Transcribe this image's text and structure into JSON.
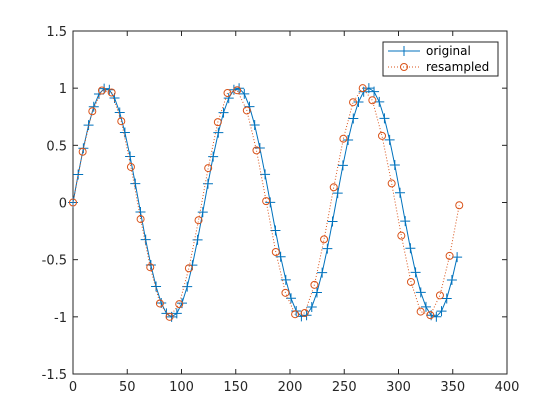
{
  "chart_data": {
    "type": "line",
    "title": "",
    "xlabel": "",
    "ylabel": "",
    "xlim": [
      0,
      400
    ],
    "ylim": [
      -1.5,
      1.5
    ],
    "xticks": [
      0,
      50,
      100,
      150,
      200,
      250,
      300,
      350,
      400
    ],
    "yticks": [
      -1.5,
      -1,
      -0.5,
      0,
      0.5,
      1,
      1.5
    ],
    "grid": false,
    "legend_position": "top-right",
    "series": [
      {
        "name": "original",
        "style": "solid line with plus markers",
        "color": "#0072BD",
        "x": [
          0,
          4.78,
          9.57,
          14.35,
          19.14,
          23.92,
          28.7,
          33.49,
          38.27,
          43.06,
          47.84,
          52.62,
          57.41,
          62.19,
          66.98,
          71.76,
          76.54,
          81.33,
          86.11,
          90.9,
          95.68,
          100.46,
          105.25,
          110.03,
          114.82,
          119.6,
          124.38,
          129.17,
          133.95,
          138.74,
          143.52,
          148.3,
          153.09,
          157.87,
          162.66,
          167.44,
          172.22,
          177.01,
          181.79,
          186.58,
          191.36,
          196.14,
          200.93,
          205.71,
          210.5,
          215.28,
          220.06,
          224.85,
          229.63,
          234.42,
          239.2,
          243.98,
          248.77,
          253.55,
          258.34,
          263.12,
          267.9,
          272.69,
          277.47,
          282.26,
          287.04,
          291.82,
          296.61,
          301.39,
          306.18,
          310.96,
          315.74,
          320.53,
          325.31,
          330.1,
          334.88,
          339.66,
          344.45,
          349.23,
          354.02
        ],
        "y": [
          0,
          0.245,
          0.475,
          0.677,
          0.838,
          0.949,
          0.996,
          0.986,
          0.914,
          0.787,
          0.612,
          0.402,
          0.165,
          -0.083,
          -0.325,
          -0.547,
          -0.735,
          -0.879,
          -0.97,
          -1.0,
          -0.97,
          -0.88,
          -0.736,
          -0.548,
          -0.327,
          -0.084,
          0.164,
          0.401,
          0.611,
          0.786,
          0.913,
          0.986,
          0.999,
          0.95,
          0.839,
          0.678,
          0.477,
          0.246,
          0.001,
          -0.245,
          -0.474,
          -0.677,
          -0.838,
          -0.949,
          -0.996,
          -0.986,
          -0.914,
          -0.787,
          -0.613,
          -0.403,
          -0.166,
          0.082,
          0.325,
          0.547,
          0.735,
          0.879,
          0.969,
          1.0,
          0.97,
          0.88,
          0.736,
          0.548,
          0.328,
          0.085,
          -0.163,
          -0.4,
          -0.611,
          -0.786,
          -0.913,
          -0.986,
          -0.999,
          -0.95,
          -0.84,
          -0.678,
          -0.478
        ]
      },
      {
        "name": "resampled",
        "style": "dotted line with circle markers",
        "color": "#D95319",
        "x": [
          0,
          8.9,
          17.8,
          26.7,
          35.6,
          44.5,
          53.4,
          62.3,
          71.2,
          80.1,
          89,
          97.9,
          106.8,
          115.7,
          124.6,
          133.5,
          142.4,
          151.3,
          160.2,
          169.1,
          178,
          186.9,
          195.8,
          204.7,
          213.6,
          222.5,
          231.4,
          240.3,
          249.2,
          258.1,
          267,
          275.9,
          284.8,
          293.7,
          302.6,
          311.5,
          320.4,
          329.3,
          338.2,
          347.1,
          356
        ],
        "y": [
          0,
          0.444,
          0.798,
          0.98,
          0.962,
          0.711,
          0.311,
          -0.145,
          -0.566,
          -0.883,
          -1.0,
          -0.889,
          -0.575,
          -0.155,
          0.301,
          0.703,
          0.958,
          0.982,
          0.805,
          0.456,
          0.012,
          -0.433,
          -0.79,
          -0.977,
          -0.966,
          -0.72,
          -0.322,
          0.133,
          0.558,
          0.877,
          1.0,
          0.894,
          0.583,
          0.167,
          -0.29,
          -0.695,
          -0.954,
          -0.985,
          -0.812,
          -0.467,
          -0.024
        ]
      }
    ]
  }
}
